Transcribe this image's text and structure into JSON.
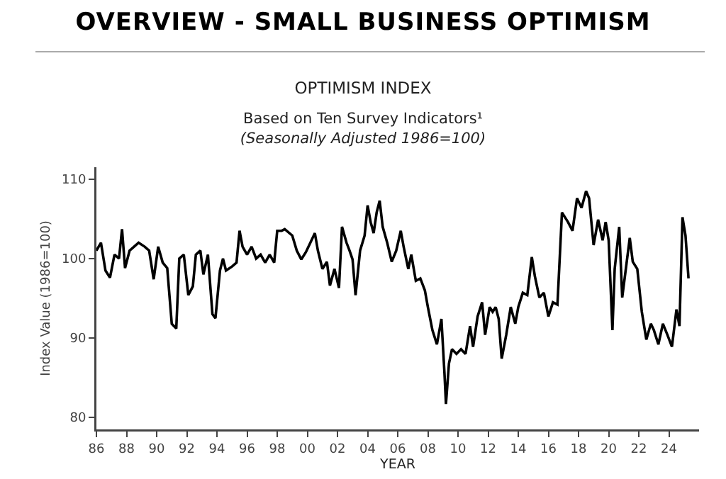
{
  "chart_data": {
    "type": "line",
    "title": "OVERVIEW - SMALL BUSINESS OPTIMISM",
    "subtitle": "OPTIMISM INDEX",
    "annotations": [
      "Based on Ten Survey Indicators¹",
      "(Seasonally Adjusted 1986=100)"
    ],
    "xlabel": "YEAR",
    "ylabel": "Index Value (1986=100)",
    "x": [
      1986.0,
      1986.3,
      1986.6,
      1986.9,
      1987.2,
      1987.5,
      1987.7,
      1987.9,
      1988.2,
      1988.5,
      1988.8,
      1989.2,
      1989.5,
      1989.8,
      1990.1,
      1990.4,
      1990.7,
      1991.0,
      1991.3,
      1991.5,
      1991.8,
      1992.1,
      1992.4,
      1992.6,
      1992.9,
      1993.1,
      1993.4,
      1993.7,
      1993.9,
      1994.2,
      1994.4,
      1994.6,
      1995.0,
      1995.3,
      1995.5,
      1995.7,
      1996.0,
      1996.3,
      1996.6,
      1996.9,
      1997.2,
      1997.5,
      1997.8,
      1998.0,
      1998.3,
      1998.5,
      1999.0,
      1999.3,
      1999.6,
      1999.9,
      2000.2,
      2000.5,
      2000.7,
      2001.0,
      2001.3,
      2001.5,
      2001.8,
      2002.1,
      2002.3,
      2002.6,
      2002.8,
      2003.0,
      2003.2,
      2003.5,
      2003.8,
      2004.0,
      2004.2,
      2004.4,
      2004.6,
      2004.8,
      2005.0,
      2005.3,
      2005.6,
      2005.9,
      2006.2,
      2006.4,
      2006.7,
      2006.9,
      2007.2,
      2007.5,
      2007.8,
      2008.0,
      2008.3,
      2008.6,
      2008.9,
      2009.1,
      2009.2,
      2009.4,
      2009.6,
      2009.9,
      2010.2,
      2010.5,
      2010.8,
      2011.0,
      2011.3,
      2011.6,
      2011.8,
      2012.1,
      2012.3,
      2012.5,
      2012.7,
      2012.9,
      2013.2,
      2013.5,
      2013.8,
      2014.0,
      2014.3,
      2014.6,
      2014.9,
      2015.1,
      2015.4,
      2015.7,
      2016.0,
      2016.3,
      2016.6,
      2016.9,
      2017.3,
      2017.6,
      2017.9,
      2018.2,
      2018.5,
      2018.7,
      2019.0,
      2019.3,
      2019.6,
      2019.8,
      2020.0,
      2020.25,
      2020.4,
      2020.7,
      2020.9,
      2021.1,
      2021.4,
      2021.6,
      2021.9,
      2022.2,
      2022.5,
      2022.8,
      2023.0,
      2023.3,
      2023.6,
      2023.9,
      2024.2,
      2024.5,
      2024.7,
      2024.9,
      2025.1,
      2025.3
    ],
    "series": [
      {
        "color": "#000000",
        "values": [
          101.0,
          102.0,
          98.5,
          97.6,
          100.5,
          100.0,
          103.7,
          98.8,
          101.0,
          101.5,
          102.0,
          101.5,
          101.0,
          97.4,
          101.5,
          99.5,
          98.8,
          91.8,
          91.2,
          100.0,
          100.5,
          95.4,
          96.5,
          100.5,
          101.0,
          98.0,
          100.5,
          93.0,
          92.5,
          98.5,
          100.0,
          98.5,
          99.0,
          99.5,
          103.5,
          101.5,
          100.5,
          101.5,
          100.0,
          100.5,
          99.5,
          100.5,
          99.5,
          103.5,
          103.5,
          103.7,
          102.9,
          101.0,
          99.9,
          100.8,
          102.0,
          103.2,
          101.0,
          98.7,
          99.6,
          96.6,
          98.7,
          96.3,
          104.0,
          102.0,
          101.0,
          99.9,
          95.4,
          101.0,
          102.9,
          106.7,
          104.6,
          103.2,
          105.8,
          107.3,
          104.0,
          102.0,
          99.6,
          101.0,
          103.5,
          101.4,
          98.7,
          100.5,
          97.2,
          97.5,
          96.0,
          93.9,
          91.0,
          89.2,
          92.4,
          85.6,
          81.7,
          86.8,
          88.6,
          88.0,
          88.6,
          88.0,
          91.5,
          88.9,
          92.7,
          94.5,
          90.4,
          93.9,
          93.3,
          93.9,
          92.4,
          87.4,
          90.4,
          93.9,
          91.8,
          93.9,
          95.7,
          95.4,
          100.2,
          97.8,
          95.1,
          95.7,
          92.7,
          94.5,
          94.2,
          105.8,
          104.6,
          103.5,
          107.6,
          106.4,
          108.5,
          107.6,
          101.7,
          104.9,
          102.3,
          104.6,
          102.3,
          91.0,
          98.7,
          104.0,
          95.1,
          98.1,
          102.6,
          99.6,
          98.7,
          93.3,
          89.8,
          91.8,
          91.0,
          89.2,
          91.8,
          90.4,
          88.9,
          93.6,
          91.5,
          105.2,
          102.9,
          97.5
        ]
      }
    ],
    "xlim": [
      1986,
      2026
    ],
    "xticks": [
      {
        "value": 1986,
        "label": "86"
      },
      {
        "value": 1988,
        "label": "88"
      },
      {
        "value": 1990,
        "label": "90"
      },
      {
        "value": 1992,
        "label": "92"
      },
      {
        "value": 1994,
        "label": "94"
      },
      {
        "value": 1996,
        "label": "96"
      },
      {
        "value": 1998,
        "label": "98"
      },
      {
        "value": 2000,
        "label": "00"
      },
      {
        "value": 2002,
        "label": "02"
      },
      {
        "value": 2004,
        "label": "04"
      },
      {
        "value": 2006,
        "label": "06"
      },
      {
        "value": 2008,
        "label": "08"
      },
      {
        "value": 2010,
        "label": "10"
      },
      {
        "value": 2012,
        "label": "12"
      },
      {
        "value": 2014,
        "label": "14"
      },
      {
        "value": 2016,
        "label": "16"
      },
      {
        "value": 2018,
        "label": "18"
      },
      {
        "value": 2020,
        "label": "20"
      },
      {
        "value": 2022,
        "label": "22"
      },
      {
        "value": 2024,
        "label": "24"
      }
    ],
    "ylim": [
      78.5,
      111.5
    ],
    "yticks": [
      80,
      90,
      100,
      110
    ],
    "grid": false,
    "marker": "none",
    "line_style": "solid"
  }
}
